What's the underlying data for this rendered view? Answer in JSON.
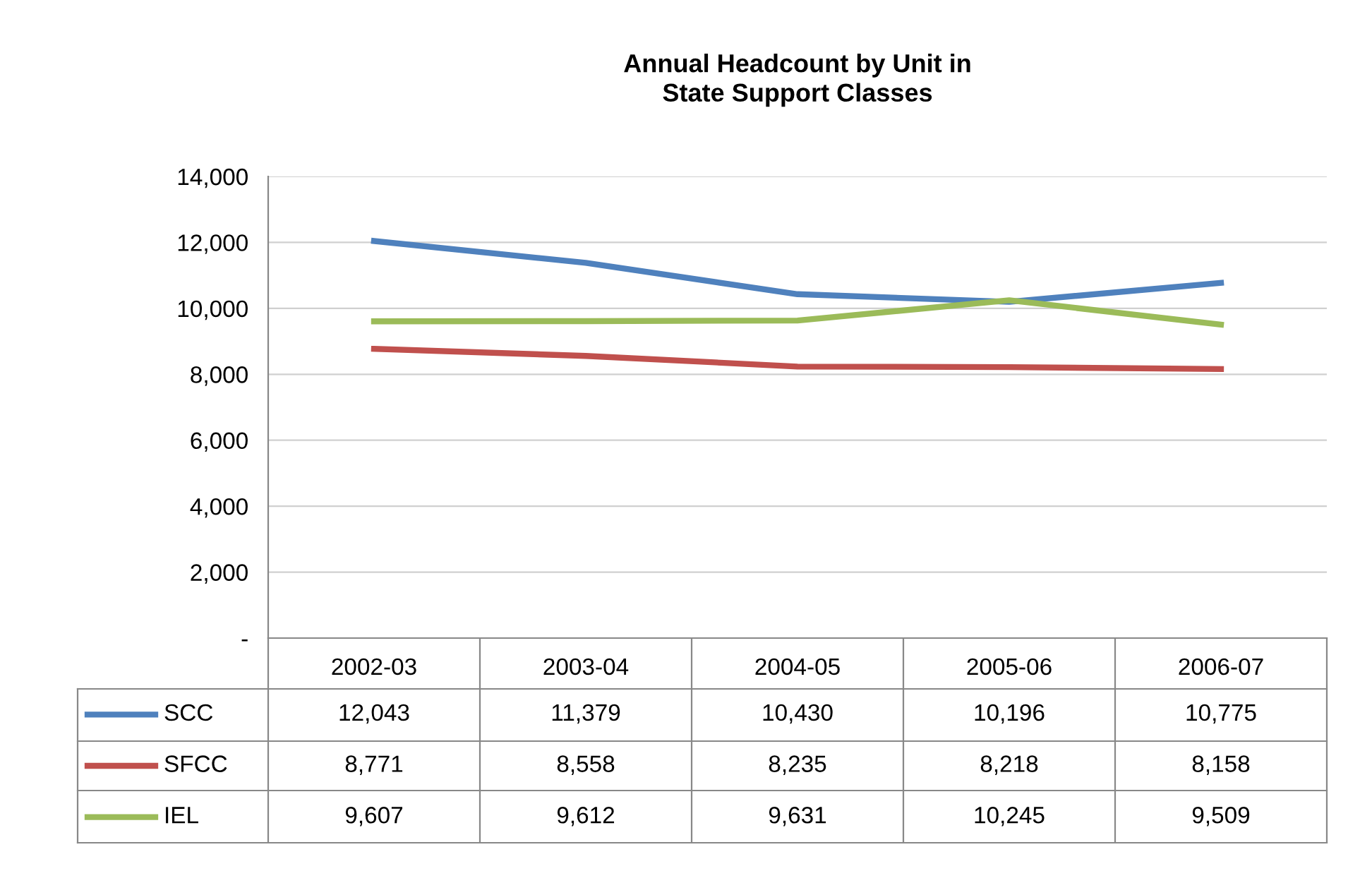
{
  "chart_data": {
    "type": "line",
    "title": "Annual Headcount by Unit in\nState Support Classes",
    "categories": [
      "2002-03",
      "2003-04",
      "2004-05",
      "2005-06",
      "2006-07"
    ],
    "series": [
      {
        "name": "SCC",
        "color": "#4f81bd",
        "values": [
          12043,
          11379,
          10430,
          10196,
          10775
        ],
        "value_labels": [
          "12,043",
          "11,379",
          "10,430",
          "10,196",
          "10,775"
        ]
      },
      {
        "name": "SFCC",
        "color": "#c0504d",
        "values": [
          8771,
          8558,
          8235,
          8218,
          8158
        ],
        "value_labels": [
          "8,771",
          "8,558",
          "8,235",
          "8,218",
          "8,158"
        ]
      },
      {
        "name": "IEL",
        "color": "#9bbb59",
        "values": [
          9607,
          9612,
          9631,
          10245,
          9509
        ],
        "value_labels": [
          "9,607",
          "9,612",
          "9,631",
          "10,245",
          "9,509"
        ]
      }
    ],
    "ylim": [
      0,
      14000
    ],
    "yticks": [
      {
        "value": 0,
        "label": "-"
      },
      {
        "value": 2000,
        "label": "2,000"
      },
      {
        "value": 4000,
        "label": "4,000"
      },
      {
        "value": 6000,
        "label": "6,000"
      },
      {
        "value": 8000,
        "label": "8,000"
      },
      {
        "value": 10000,
        "label": "10,000"
      },
      {
        "value": 12000,
        "label": "12,000"
      },
      {
        "value": 14000,
        "label": "14,000"
      }
    ],
    "grid": "y",
    "legend": "bottom left",
    "line_style": "solid",
    "marker": "none"
  }
}
